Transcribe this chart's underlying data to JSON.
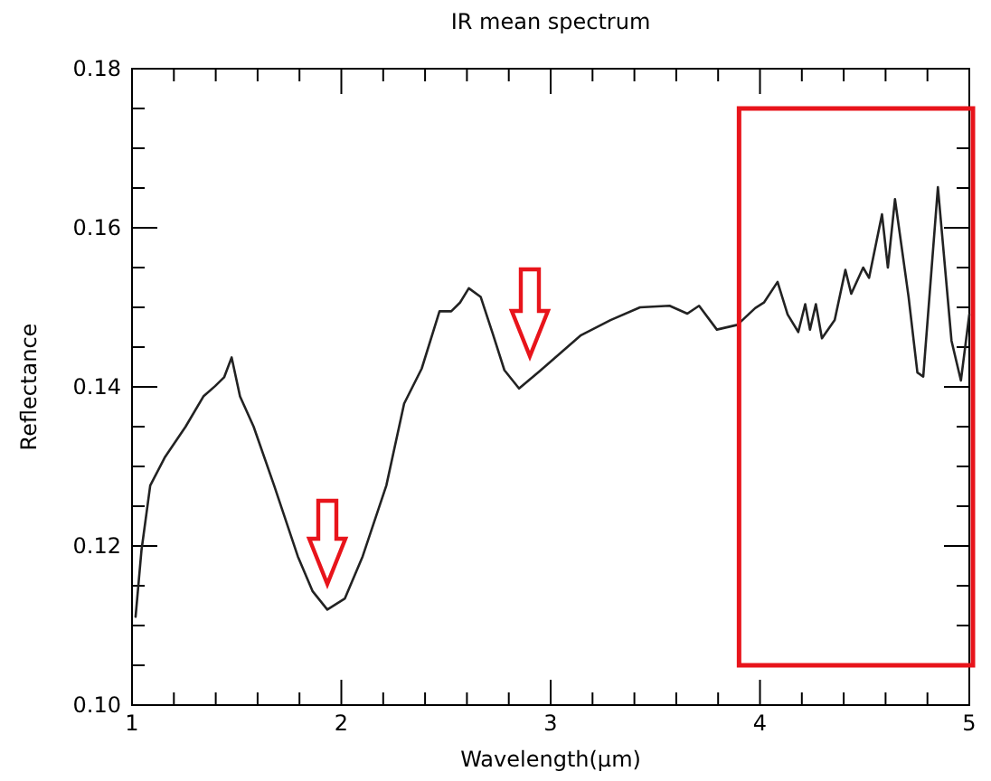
{
  "chart_data": {
    "type": "line",
    "title": "IR mean spectrum",
    "xlabel": "Wavelength(µm)",
    "ylabel": "Reflectance",
    "xlim": [
      1,
      5
    ],
    "ylim": [
      0.1,
      0.18
    ],
    "xticks": [
      1,
      {
        "value": 1.2,
        "label": null
      },
      {
        "value": 1.4,
        "label": null
      },
      {
        "value": 1.6,
        "label": null
      },
      {
        "value": 1.8,
        "label": null
      },
      2,
      {
        "value": 2.2,
        "label": null
      },
      {
        "value": 2.4,
        "label": null
      },
      {
        "value": 2.6,
        "label": null
      },
      {
        "value": 2.8,
        "label": null
      },
      3,
      {
        "value": 3.2,
        "label": null
      },
      {
        "value": 3.4,
        "label": null
      },
      {
        "value": 3.6,
        "label": null
      },
      {
        "value": 3.8,
        "label": null
      },
      4,
      {
        "value": 4.2,
        "label": null
      },
      {
        "value": 4.4,
        "label": null
      },
      {
        "value": 4.6,
        "label": null
      },
      {
        "value": 4.8,
        "label": null
      },
      5
    ],
    "yticks": [
      {
        "value": 0.1,
        "label": "0.10"
      },
      {
        "value": 0.105,
        "label": null
      },
      {
        "value": 0.11,
        "label": null
      },
      {
        "value": 0.115,
        "label": null
      },
      {
        "value": 0.12,
        "label": "0.12"
      },
      {
        "value": 0.125,
        "label": null
      },
      {
        "value": 0.13,
        "label": null
      },
      {
        "value": 0.135,
        "label": null
      },
      {
        "value": 0.14,
        "label": "0.14"
      },
      {
        "value": 0.145,
        "label": null
      },
      {
        "value": 0.15,
        "label": null
      },
      {
        "value": 0.155,
        "label": null
      },
      {
        "value": 0.16,
        "label": "0.16"
      },
      {
        "value": 0.165,
        "label": null
      },
      {
        "value": 0.17,
        "label": null
      },
      {
        "value": 0.175,
        "label": null
      },
      {
        "value": 0.18,
        "label": "0.18"
      }
    ],
    "grid": false,
    "marker": "none",
    "line_style": "solid",
    "series": [
      {
        "color": "#222222",
        "x": [
          1.017,
          1.045,
          1.087,
          1.158,
          1.256,
          1.341,
          1.397,
          1.44,
          1.476,
          1.516,
          1.581,
          1.679,
          1.792,
          1.863,
          1.933,
          2.017,
          2.102,
          2.215,
          2.3,
          2.384,
          2.469,
          2.525,
          2.567,
          2.609,
          2.666,
          2.722,
          2.779,
          2.849,
          2.948,
          3.145,
          3.286,
          3.427,
          3.568,
          3.653,
          3.709,
          3.794,
          3.892,
          3.977,
          4.019,
          4.084,
          4.132,
          4.183,
          4.216,
          4.239,
          4.267,
          4.296,
          4.357,
          4.408,
          4.436,
          4.493,
          4.521,
          4.583,
          4.611,
          4.645,
          4.71,
          4.752,
          4.78,
          4.85,
          4.915,
          4.96,
          5.0
        ],
        "values": [
          0.1111,
          0.1194,
          0.1276,
          0.1312,
          0.135,
          0.1388,
          0.1401,
          0.1412,
          0.1437,
          0.1388,
          0.135,
          0.1276,
          0.1187,
          0.1143,
          0.112,
          0.1134,
          0.1187,
          0.1276,
          0.1379,
          0.1423,
          0.1495,
          0.1495,
          0.1506,
          0.1524,
          0.1513,
          0.1468,
          0.1421,
          0.1398,
          0.142,
          0.1465,
          0.1484,
          0.15,
          0.1502,
          0.1492,
          0.1502,
          0.1472,
          0.1478,
          0.1499,
          0.1506,
          0.1532,
          0.1491,
          0.1469,
          0.1504,
          0.1472,
          0.1504,
          0.1461,
          0.1484,
          0.1547,
          0.1517,
          0.155,
          0.1537,
          0.1617,
          0.155,
          0.1636,
          0.1513,
          0.1418,
          0.1413,
          0.1651,
          0.1458,
          0.1408,
          0.1491
        ]
      }
    ]
  }
}
